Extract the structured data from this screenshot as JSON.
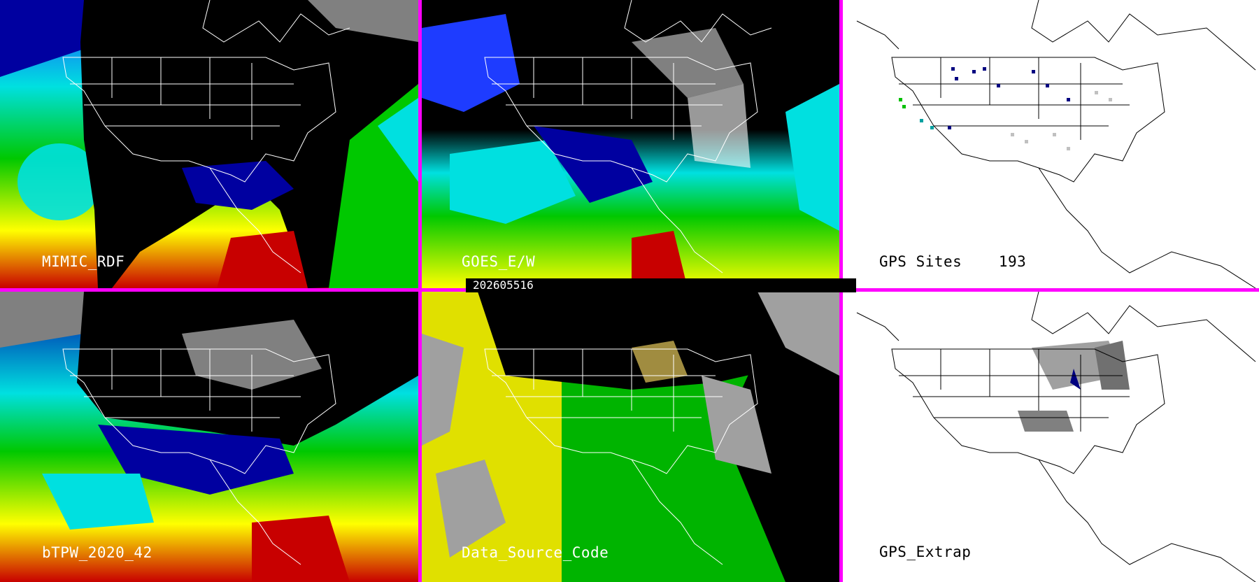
{
  "timestamp": "202605516",
  "panels": [
    {
      "id": "p1",
      "label": "MIMIC_RDF",
      "style": "moisture-wide"
    },
    {
      "id": "p2",
      "label": "GOES_E/W",
      "style": "moisture-goes"
    },
    {
      "id": "p3",
      "label": "GPS Sites    193",
      "style": "gps-sites"
    },
    {
      "id": "p4",
      "label": "bTPW_2020_42",
      "style": "moisture-blended"
    },
    {
      "id": "p5",
      "label": "Data_Source_Code",
      "style": "source-code"
    },
    {
      "id": "p6",
      "label": "GPS_Extrap",
      "style": "gps-extrap"
    }
  ],
  "colors": {
    "separator": "#ff00ff",
    "moisture_scale": [
      "#000000",
      "#808080",
      "#ffffff",
      "#0000a0",
      "#1e3cff",
      "#00e0e0",
      "#00c800",
      "#ffff00",
      "#d28c00",
      "#c80000"
    ],
    "source_code": [
      "#e0e000",
      "#00b400",
      "#a0a0a0",
      "#000000",
      "#a08c40"
    ],
    "gps_sites": [
      "#000080",
      "#c0c0c0",
      "#00a0a0",
      "#00c000"
    ]
  }
}
